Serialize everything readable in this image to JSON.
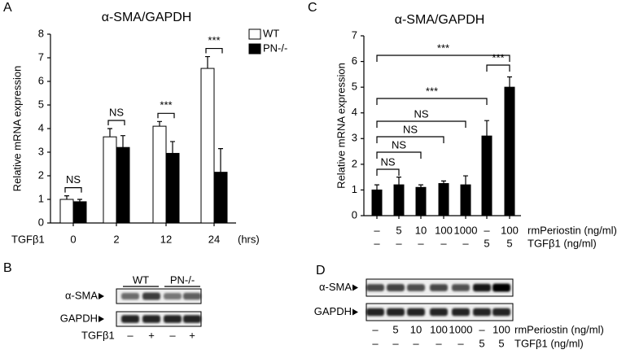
{
  "chart_data": [
    {
      "type": "bar",
      "panel": "A",
      "title": "α-SMA/GAPDH",
      "ylabel": "Relative mRNA expression",
      "x_label": "TGFβ1",
      "x_unit": "(hrs)",
      "categories": [
        "0",
        "2",
        "12",
        "24"
      ],
      "series": [
        {
          "name": "WT",
          "color": "#ffffff",
          "values": [
            1.0,
            3.65,
            4.1,
            6.55
          ],
          "errors": [
            0.15,
            0.35,
            0.2,
            0.5
          ]
        },
        {
          "name": "PN-/-",
          "color": "#000000",
          "values": [
            0.9,
            3.2,
            2.95,
            2.15
          ],
          "errors": [
            0.1,
            0.5,
            0.5,
            1.0
          ]
        }
      ],
      "significance": [
        "NS",
        "NS",
        "***",
        "***"
      ],
      "ylim": [
        0,
        8
      ],
      "yticks": [
        0,
        1,
        2,
        3,
        4,
        5,
        6,
        7,
        8
      ],
      "legend": "upper right"
    },
    {
      "type": "bar",
      "panel": "C",
      "title": "α-SMA/GAPDH",
      "ylabel": "Relative mRNA expression",
      "categories": [
        "–",
        "5",
        "10",
        "100",
        "1000",
        "–",
        "100"
      ],
      "categories_label": "rmPeriostin (ng/ml)",
      "categories2": [
        "–",
        "–",
        "–",
        "–",
        "–",
        "5",
        "5"
      ],
      "categories2_label": "TGFβ1 (ng/ml)",
      "color": "#000000",
      "values": [
        1.0,
        1.2,
        1.1,
        1.25,
        1.2,
        3.1,
        5.0
      ],
      "errors": [
        0.2,
        0.3,
        0.1,
        0.1,
        0.35,
        0.6,
        0.4
      ],
      "comparisons": [
        {
          "from": 0,
          "to": 1,
          "label": "NS"
        },
        {
          "from": 0,
          "to": 2,
          "label": "NS"
        },
        {
          "from": 0,
          "to": 3,
          "label": "NS"
        },
        {
          "from": 0,
          "to": 4,
          "label": "NS"
        },
        {
          "from": 0,
          "to": 5,
          "label": "***"
        },
        {
          "from": 5,
          "to": 6,
          "label": "***"
        },
        {
          "from": 0,
          "to": 6,
          "label": "***"
        }
      ],
      "ylim": [
        0,
        7
      ],
      "yticks": [
        0,
        1,
        2,
        3,
        4,
        5,
        6,
        7
      ]
    }
  ],
  "blots": [
    {
      "panel": "B",
      "groups": [
        "WT",
        "PN-/-"
      ],
      "rows": [
        "α-SMA",
        "GAPDH"
      ],
      "treatment": "TGFβ1",
      "lanes": [
        "–",
        "+",
        "–",
        "+"
      ]
    },
    {
      "panel": "D",
      "rows": [
        "α-SMA",
        "GAPDH"
      ],
      "lane_rows": [
        {
          "label": "rmPeriostin (ng/ml)",
          "lanes": [
            "–",
            "5",
            "10",
            "100",
            "1000",
            "–",
            "100"
          ]
        },
        {
          "label": "TGFβ1 (ng/ml)",
          "lanes": [
            "–",
            "–",
            "–",
            "–",
            "–",
            "5",
            "5"
          ]
        }
      ]
    }
  ]
}
